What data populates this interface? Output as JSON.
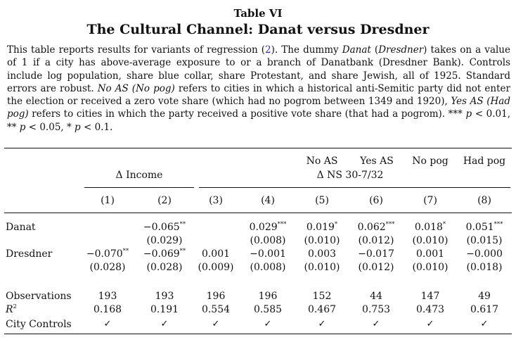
{
  "table": {
    "label": "Table VI",
    "title": "The Cultural Channel: Danat versus Dresdner",
    "caption": {
      "p1": "This table reports results for variants of regression (",
      "ref": "2",
      "p2": "). The dummy ",
      "danat": "Danat",
      "p3": " (",
      "dresdner": "Dresdner",
      "p4": ") takes on a value of 1 if a city has above-average exposure to or a branch of Danatbank (Dresdner Bank). Controls include log population, share blue collar, share Protestant, and share Jewish, all of 1925. Standard errors are robust. ",
      "noas": "No AS (No pog)",
      "p5": " refers to cities in which a historical anti-Semitic party did not enter the election or received a zero vote share (which had no pogrom between 1349 and 1920), ",
      "yesas": "Yes AS (Had pog)",
      "p6": " refers to cities in which the party received a positive vote share (that had a pogrom). *** ",
      "p_1": "p",
      "p7": " < 0.01, ** ",
      "p_2": "p",
      "p8": " < 0.05, * ",
      "p_3": "p",
      "p9": " < 0.1."
    },
    "headers": {
      "group_income": "Δ Income",
      "group_ns": "Δ NS 30-7/32",
      "sub_noas": "No AS",
      "sub_yesas": "Yes AS",
      "sub_nopog": "No pog",
      "sub_hadpog": "Had pog"
    },
    "columns": [
      "(1)",
      "(2)",
      "(3)",
      "(4)",
      "(5)",
      "(6)",
      "(7)",
      "(8)"
    ],
    "rows": {
      "danat_label": "Danat",
      "danat_coef": [
        "",
        "−0.065",
        "",
        "0.029",
        "0.019",
        "0.062",
        "0.018",
        "0.051"
      ],
      "danat_stars": [
        "",
        "**",
        "",
        "***",
        "*",
        "***",
        "*",
        "***"
      ],
      "danat_se": [
        "",
        "(0.029)",
        "",
        "(0.008)",
        "(0.010)",
        "(0.012)",
        "(0.010)",
        "(0.015)"
      ],
      "dresdner_label": "Dresdner",
      "dresdner_coef": [
        "−0.070",
        "−0.069",
        "0.001",
        "−0.001",
        "0.003",
        "−0.017",
        "0.001",
        "−0.000"
      ],
      "dresdner_stars": [
        "**",
        "**",
        "",
        "",
        "",
        "",
        "",
        ""
      ],
      "dresdner_se": [
        "(0.028)",
        "(0.028)",
        "(0.009)",
        "(0.008)",
        "(0.010)",
        "(0.012)",
        "(0.010)",
        "(0.018)"
      ],
      "obs_label": "Observations",
      "obs": [
        "193",
        "193",
        "196",
        "196",
        "152",
        "44",
        "147",
        "49"
      ],
      "r2_label": "R",
      "r2_sup": "2",
      "r2": [
        "0.168",
        "0.191",
        "0.554",
        "0.585",
        "0.467",
        "0.753",
        "0.473",
        "0.617"
      ],
      "controls_label": "City Controls",
      "controls": [
        "✓",
        "✓",
        "✓",
        "✓",
        "✓",
        "✓",
        "✓",
        "✓"
      ]
    }
  }
}
